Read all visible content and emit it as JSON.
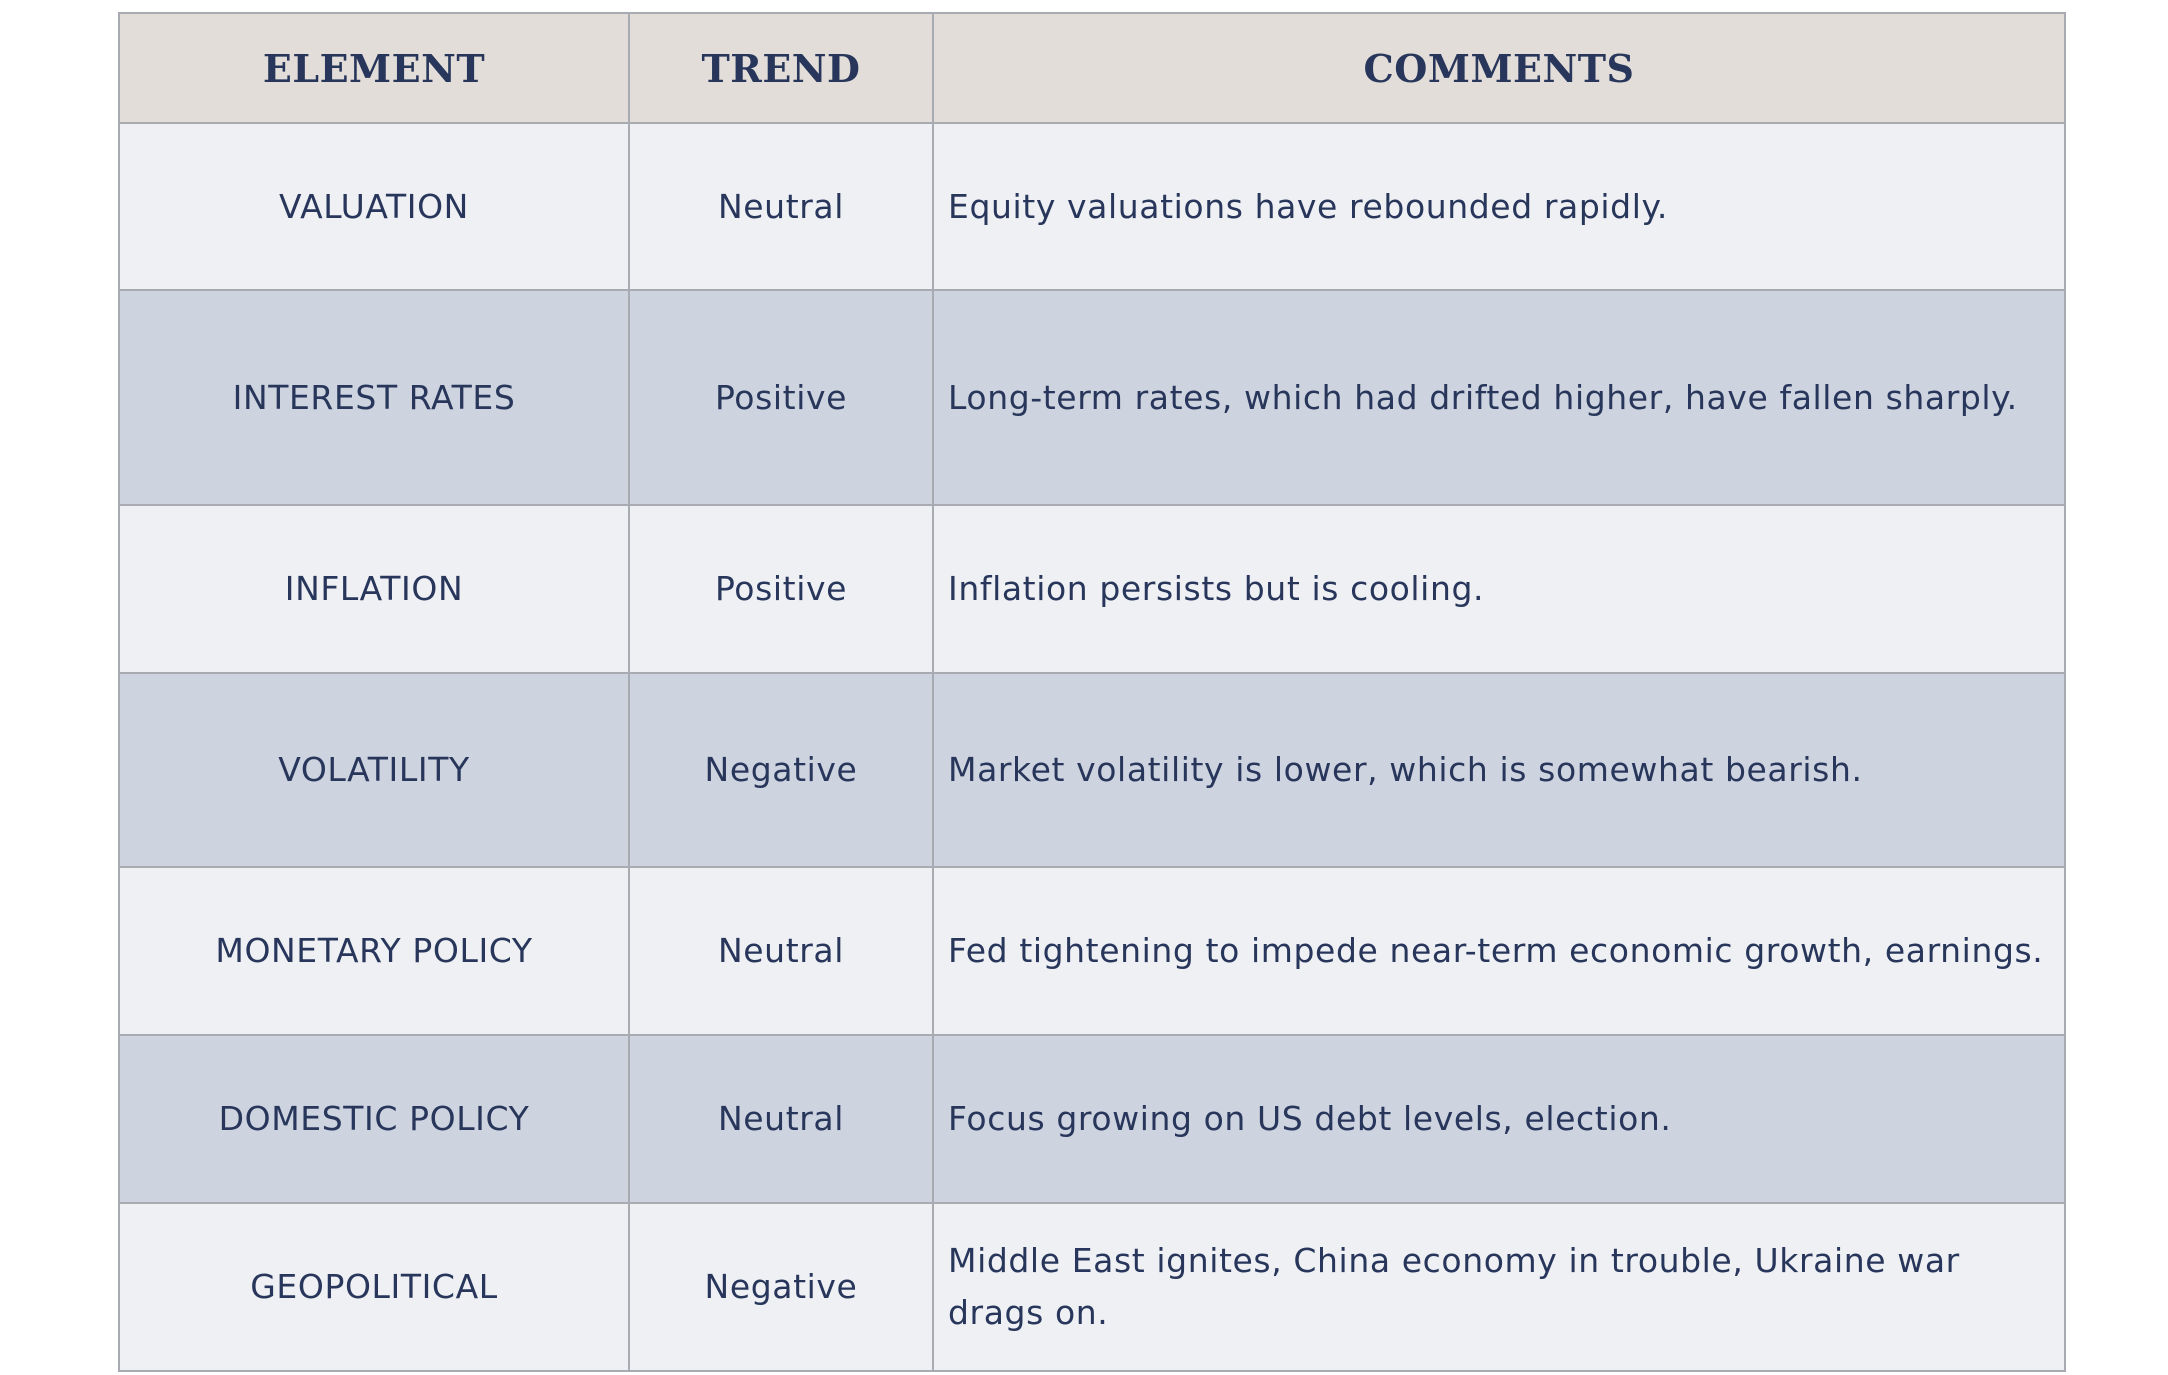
{
  "table": {
    "headers": [
      "ELEMENT",
      "TREND",
      "COMMENTS"
    ],
    "rows": [
      {
        "element": "VALUATION",
        "trend": "Neutral",
        "comment": "Equity valuations have rebounded rapidly."
      },
      {
        "element": "INTEREST RATES",
        "trend": "Positive",
        "comment": "Long-term rates, which had drifted higher, have fallen sharply."
      },
      {
        "element": "INFLATION",
        "trend": "Positive",
        "comment": "Inflation persists but is cooling."
      },
      {
        "element": "VOLATILITY",
        "trend": "Negative",
        "comment": "Market volatility is lower, which is somewhat bearish."
      },
      {
        "element": "MONETARY POLICY",
        "trend": "Neutral",
        "comment": "Fed tightening to impede near-term economic growth, earnings."
      },
      {
        "element": "DOMESTIC POLICY",
        "trend": "Neutral",
        "comment": "Focus growing on US debt levels, election."
      },
      {
        "element": "GEOPOLITICAL",
        "trend": "Negative",
        "comment": "Middle East ignites, China economy in trouble, Ukraine war drags on."
      }
    ]
  },
  "colors": {
    "header_bg": "#e2ddd9",
    "row_light": "#eef0f4",
    "row_dark": "#cdd3df",
    "text": "#27365a",
    "border": "#a9abb2"
  }
}
